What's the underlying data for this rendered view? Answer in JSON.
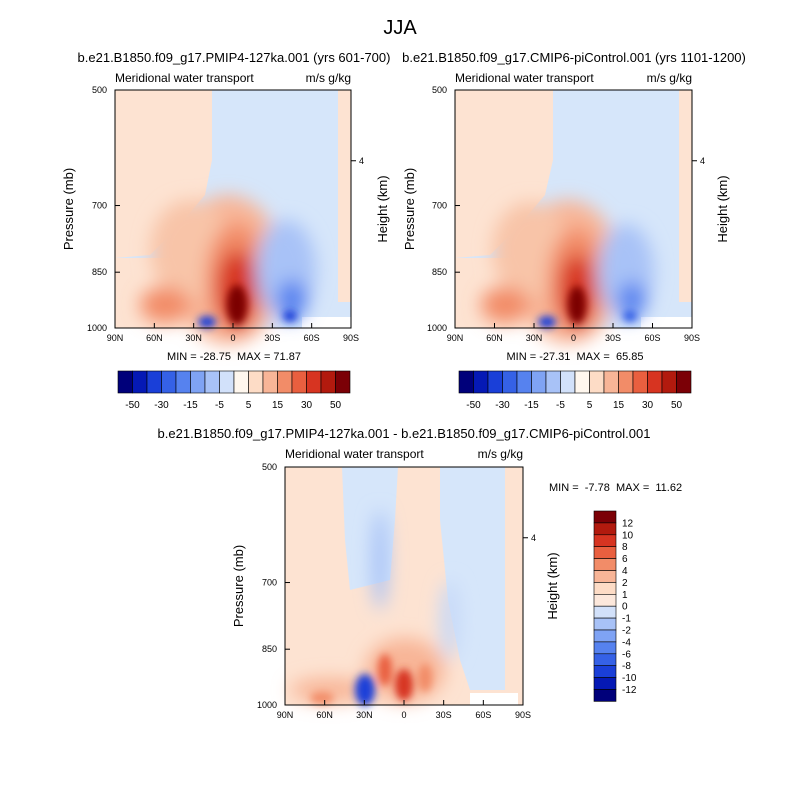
{
  "figure": {
    "title": "JJA"
  },
  "chart_data": [
    {
      "type": "heatmap",
      "title": "b.e21.B1850.f09_g17.PMIP4-127ka.001 (yrs 601-700)",
      "left_label": "Meridional water transport",
      "right_label": "m/s g/kg",
      "ylabel": "Pressure (mb)",
      "ylabel_right": "Height (km)",
      "x_ticks": [
        "90N",
        "60N",
        "30N",
        "0",
        "30S",
        "60S",
        "90S"
      ],
      "y_ticks": [
        "500",
        "700",
        "850",
        "1000"
      ],
      "y_right_ticks": [
        "4"
      ],
      "ylim": [
        1000,
        500
      ],
      "stats": "MIN = -28.75  MAX = 71.87",
      "min": -28.75,
      "max": 71.87,
      "features": [
        {
          "lat": 0,
          "p": 940,
          "value": 71.87
        },
        {
          "lat": 8,
          "p": 840,
          "value": 25
        },
        {
          "lat": 15,
          "p": 820,
          "value": 8
        },
        {
          "lat": 25,
          "p": 985,
          "value": 5
        },
        {
          "lat": 15,
          "p": 985,
          "value": -28.75
        },
        {
          "lat": -45,
          "p": 930,
          "value": -10
        },
        {
          "lat": -40,
          "p": 800,
          "value": -4
        }
      ]
    },
    {
      "type": "heatmap",
      "title": "b.e21.B1850.f09_g17.CMIP6-piControl.001 (yrs 1101-1200)",
      "left_label": "Meridional water transport",
      "right_label": "m/s g/kg",
      "ylabel": "Pressure (mb)",
      "ylabel_right": "Height (km)",
      "x_ticks": [
        "90N",
        "60N",
        "30N",
        "0",
        "30S",
        "60S",
        "90S"
      ],
      "y_ticks": [
        "500",
        "700",
        "850",
        "1000"
      ],
      "y_right_ticks": [
        "4"
      ],
      "ylim": [
        1000,
        500
      ],
      "stats": "MIN = -27.31  MAX =  65.85",
      "min": -27.31,
      "max": 65.85,
      "features": [
        {
          "lat": 0,
          "p": 940,
          "value": 65.85
        },
        {
          "lat": 8,
          "p": 840,
          "value": 22
        },
        {
          "lat": 20,
          "p": 820,
          "value": 6
        },
        {
          "lat": 15,
          "p": 985,
          "value": -27.31
        },
        {
          "lat": -45,
          "p": 930,
          "value": -9
        },
        {
          "lat": -40,
          "p": 800,
          "value": -3
        }
      ]
    },
    {
      "type": "heatmap",
      "title": "b.e21.B1850.f09_g17.PMIP4-127ka.001 - b.e21.B1850.f09_g17.CMIP6-piControl.001",
      "left_label": "Meridional water transport",
      "right_label": "m/s g/kg",
      "ylabel": "Pressure (mb)",
      "ylabel_right": "Height (km)",
      "x_ticks": [
        "90N",
        "60N",
        "30N",
        "0",
        "30S",
        "60S",
        "90S"
      ],
      "y_ticks": [
        "500",
        "700",
        "850",
        "1000"
      ],
      "y_right_ticks": [
        "4"
      ],
      "ylim": [
        1000,
        500
      ],
      "stats": "MIN =  -7.78  MAX =  11.62",
      "min": -7.78,
      "max": 11.62,
      "features": [
        {
          "lat": 30,
          "p": 960,
          "value": -7.78
        },
        {
          "lat": 0,
          "p": 950,
          "value": 11.62
        },
        {
          "lat": 20,
          "p": 940,
          "value": 6
        },
        {
          "lat": 55,
          "p": 990,
          "value": 4
        },
        {
          "lat": 15,
          "p": 700,
          "value": -1
        }
      ]
    }
  ],
  "colorbar_top": {
    "labels": [
      "-50",
      "-30",
      "-15",
      "-5",
      "5",
      "15",
      "30",
      "50"
    ],
    "colors": [
      "#00007a",
      "#0519b5",
      "#1a3fd8",
      "#3561e6",
      "#5682ef",
      "#7fa3f4",
      "#a8c2f7",
      "#d2e1fa",
      "#fff7ee",
      "#fddcc6",
      "#f8b597",
      "#f28c68",
      "#e95f3f",
      "#d73421",
      "#b21a0e",
      "#7b0006"
    ]
  },
  "colorbar_diff": {
    "labels": [
      "12",
      "10",
      "8",
      "6",
      "4",
      "2",
      "1",
      "0",
      "-1",
      "-2",
      "-4",
      "-6",
      "-8",
      "-10",
      "-12"
    ],
    "colors": [
      "#7b0006",
      "#b21a0e",
      "#d73421",
      "#e95f3f",
      "#f28c68",
      "#f8b597",
      "#fddcc6",
      "#fce8dc",
      "#d2e1fa",
      "#a8c2f7",
      "#7fa3f4",
      "#5682ef",
      "#3561e6",
      "#1a3fd8",
      "#0519b5",
      "#00007a"
    ]
  }
}
